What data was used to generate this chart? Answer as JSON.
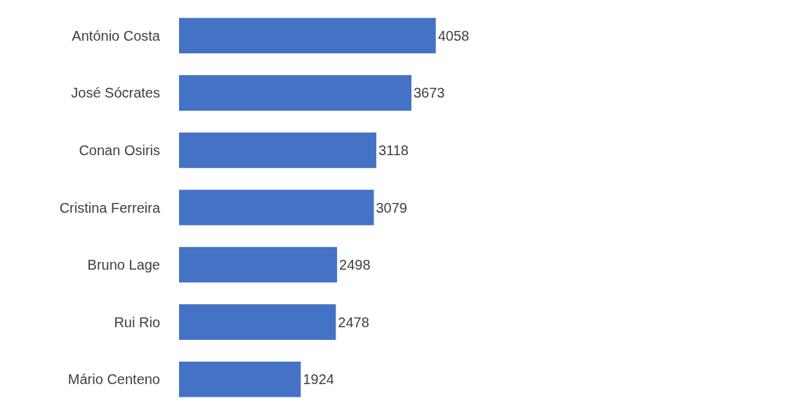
{
  "chart_data": {
    "type": "bar",
    "orientation": "horizontal",
    "categories": [
      "António Costa",
      "José Sócrates",
      "Conan Osiris",
      "Cristina Ferreira",
      "Bruno Lage",
      "Rui Rio",
      "Mário Centeno"
    ],
    "values": [
      4058,
      3673,
      3118,
      3079,
      2498,
      2478,
      1924
    ],
    "color": "#4472c4",
    "data_labels": true
  }
}
